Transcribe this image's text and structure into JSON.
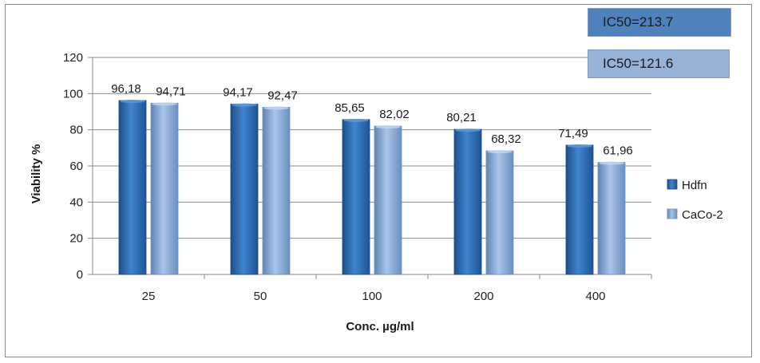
{
  "chart_data": {
    "type": "bar",
    "categories": [
      "25",
      "50",
      "100",
      "200",
      "400"
    ],
    "series": [
      {
        "name": "Hdfn",
        "values": [
          96.18,
          94.17,
          85.65,
          80.21,
          71.49
        ],
        "labels": [
          "96,18",
          "94,17",
          "85,65",
          "80,21",
          "71,49"
        ],
        "color": "#2e6db4"
      },
      {
        "name": "CaCo-2",
        "values": [
          94.71,
          92.47,
          82.02,
          68.32,
          61.96
        ],
        "labels": [
          "94,71",
          "92,47",
          "82,02",
          "68,32",
          "61,96"
        ],
        "color": "#8eb1dd"
      }
    ],
    "xlabel": "Conc. µg/ml",
    "ylabel": "Viability %",
    "ylim": [
      0,
      120
    ],
    "yticks": [
      0,
      20,
      40,
      60,
      80,
      100,
      120
    ],
    "grid": true,
    "legend_position": "right",
    "annotations": [
      "IC50=213.7",
      "IC50=121.6"
    ]
  }
}
